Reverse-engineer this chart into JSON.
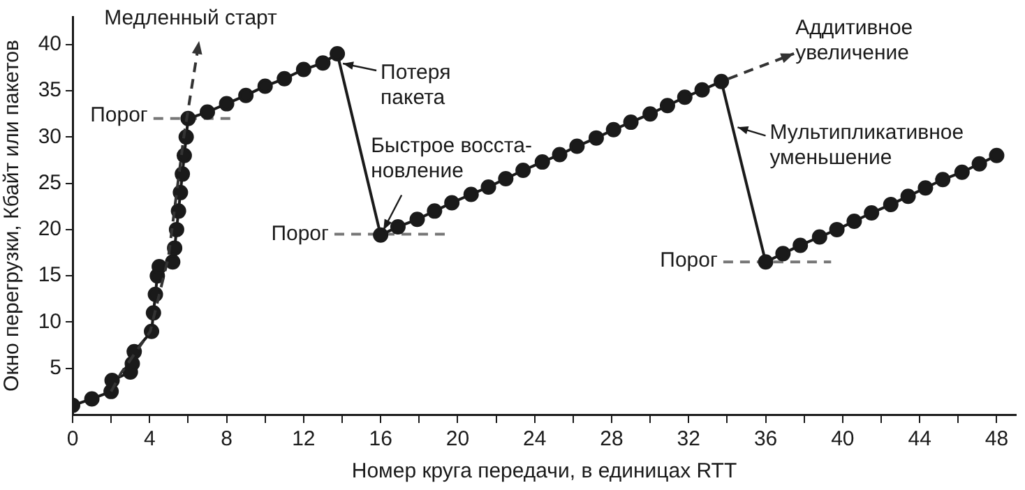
{
  "chart_data": {
    "type": "line",
    "xlabel": "Номер круга передачи, в единицах RTT",
    "ylabel": "Окно перегрузки, Кбайт или пакетов",
    "xlim": [
      0,
      49
    ],
    "ylim": [
      0,
      43
    ],
    "xticks": [
      0,
      {
        "value": 2,
        "label": null
      },
      4,
      {
        "value": 6,
        "label": null
      },
      8,
      {
        "value": 10,
        "label": null
      },
      12,
      {
        "value": 14,
        "label": null
      },
      16,
      {
        "value": 18,
        "label": null
      },
      20,
      {
        "value": 22,
        "label": null
      },
      24,
      {
        "value": 26,
        "label": null
      },
      28,
      {
        "value": 30,
        "label": null
      },
      32,
      {
        "value": 34,
        "label": null
      },
      36,
      {
        "value": 38,
        "label": null
      },
      40,
      {
        "value": 42,
        "label": null
      },
      44,
      {
        "value": 46,
        "label": null
      },
      48
    ],
    "yticks": [
      5,
      10,
      15,
      20,
      25,
      30,
      35,
      40
    ],
    "grid": false,
    "legend": false,
    "marker": "circle",
    "line_style": "solid",
    "series": [
      {
        "color": "#1a1a1a",
        "x": [
          0,
          1,
          2,
          2.05,
          3,
          3.1,
          3.2,
          4.1,
          4.2,
          4.3,
          4.4,
          4.5,
          5.2,
          5.3,
          5.4,
          5.5,
          5.6,
          5.7,
          5.8,
          5.9,
          6,
          7,
          8,
          9,
          10,
          11,
          12,
          13,
          13.75,
          16,
          16.9,
          17.9,
          18.8,
          19.7,
          20.7,
          21.6,
          22.5,
          23.4,
          24.4,
          25.3,
          26.2,
          27.2,
          28.1,
          29,
          30,
          30.9,
          31.8,
          32.7,
          33.7,
          36,
          36.9,
          37.8,
          38.8,
          39.7,
          40.6,
          41.5,
          42.5,
          43.4,
          44.3,
          45.2,
          46.2,
          47.1,
          48
        ],
        "values": [
          1,
          1.7,
          2.5,
          3.7,
          4.6,
          5.5,
          6.8,
          9,
          11,
          13,
          15,
          16,
          16.5,
          18,
          20,
          22,
          24,
          26,
          28,
          30,
          32,
          32.7,
          33.6,
          34.5,
          35.5,
          36.3,
          37.3,
          38,
          39,
          19.4,
          20.3,
          21.1,
          22,
          22.9,
          23.8,
          24.6,
          25.5,
          26.4,
          27.3,
          28.1,
          29,
          29.9,
          30.8,
          31.6,
          32.5,
          33.4,
          34.3,
          35.1,
          36,
          16.5,
          17.4,
          18.3,
          19.2,
          20,
          20.9,
          21.8,
          22.7,
          23.6,
          24.5,
          25.4,
          26.2,
          27.1,
          28
        ]
      },
      {
        "color": "#777777",
        "marker": "none",
        "line_style": "dashed",
        "x": [
          4.2,
          8.2
        ],
        "values": [
          32,
          32
        ]
      },
      {
        "color": "#777777",
        "marker": "none",
        "line_style": "dashed",
        "x": [
          13.6,
          19.4
        ],
        "values": [
          19.5,
          19.5
        ]
      },
      {
        "color": "#777777",
        "marker": "none",
        "line_style": "dashed",
        "x": [
          33.8,
          39.4
        ],
        "values": [
          16.5,
          16.5
        ]
      }
    ],
    "annotations": [
      {
        "text": "Медленный старт",
        "x": 2,
        "y": 2.5
      },
      {
        "text": "Порог",
        "x": 4.2,
        "y": 32
      },
      {
        "text": "Потеря\nпакета",
        "x": 13.75,
        "y": 39
      },
      {
        "text": "Быстрое восста-\nновление",
        "x": 16,
        "y": 19.5
      },
      {
        "text": "Порог",
        "x": 13.6,
        "y": 19.5
      },
      {
        "text": "Аддитивное\nувеличение",
        "x": 33.7,
        "y": 36
      },
      {
        "text": "Мультипликативное\nуменьшение",
        "x": 34.4,
        "y": 30
      },
      {
        "text": "Порог",
        "x": 33.8,
        "y": 16.5
      }
    ]
  }
}
